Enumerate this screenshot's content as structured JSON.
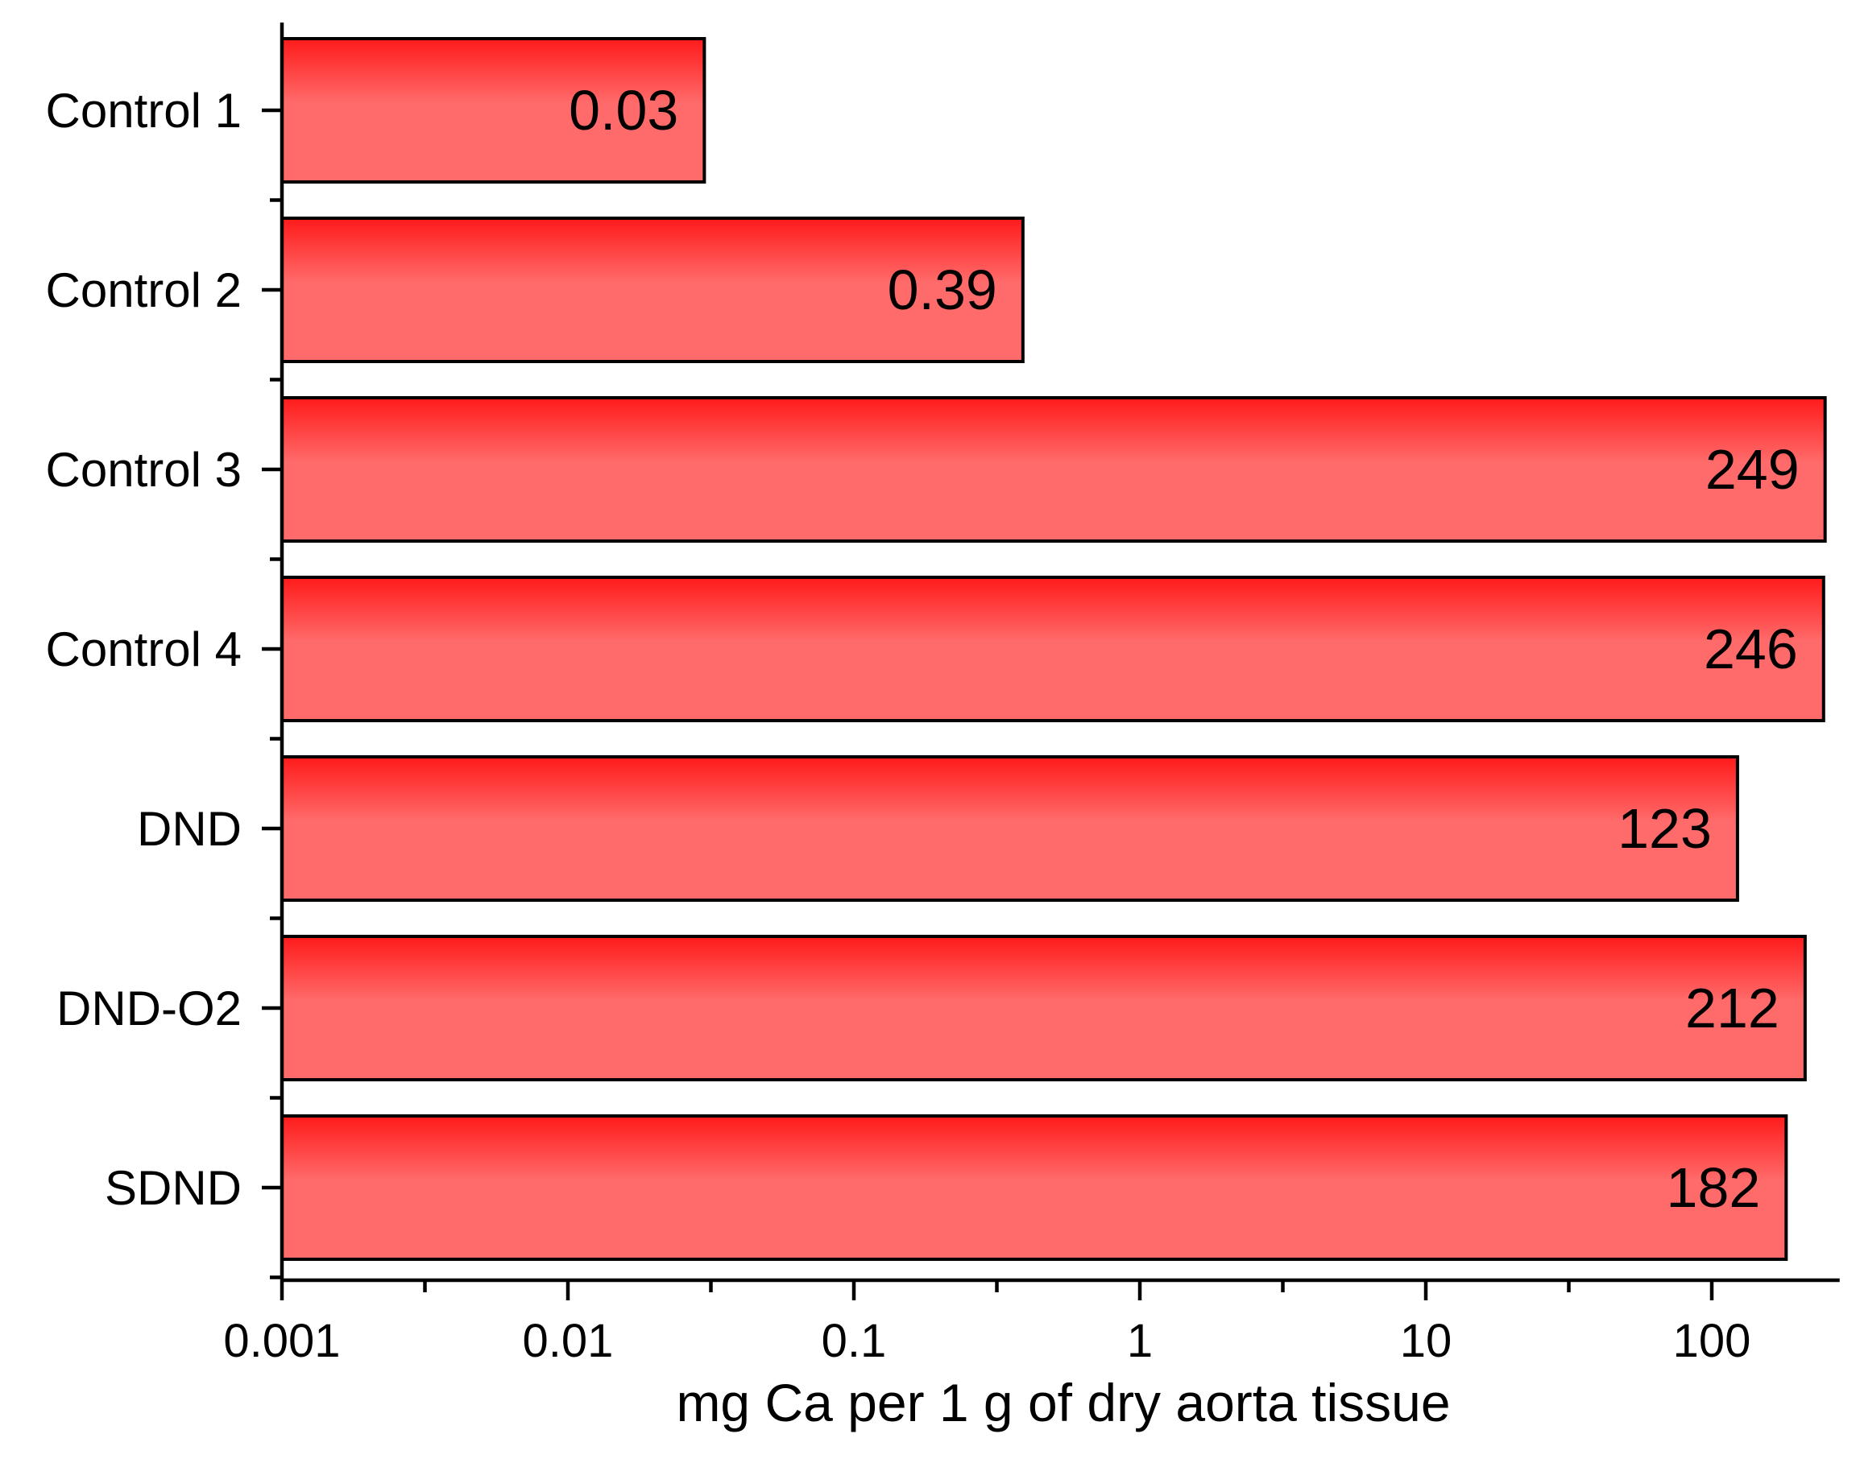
{
  "chart_data": {
    "type": "bar",
    "orientation": "horizontal",
    "x_scale": "log",
    "title": "",
    "xlabel": "mg Ca per 1 g of dry aorta tissue",
    "ylabel": "",
    "xlim": [
      0.001,
      280
    ],
    "x_ticks": [
      "0.001",
      "0.01",
      "0.1",
      "1",
      "10",
      "100"
    ],
    "x_tick_values": [
      0.001,
      0.01,
      0.1,
      1,
      10,
      100
    ],
    "categories": [
      "Control 1",
      "Control 2",
      "Control 3",
      "Control 4",
      "DND",
      "DND-O2",
      "SDND"
    ],
    "values": [
      0.03,
      0.39,
      249,
      246,
      123,
      212,
      182
    ],
    "value_labels": [
      "0.03",
      "0.39",
      "249",
      "246",
      "123",
      "212",
      "182"
    ],
    "bar_color_top": "#ff1a1a",
    "bar_color_bottom": "#ff6b6b",
    "grid": false,
    "legend": "none"
  }
}
